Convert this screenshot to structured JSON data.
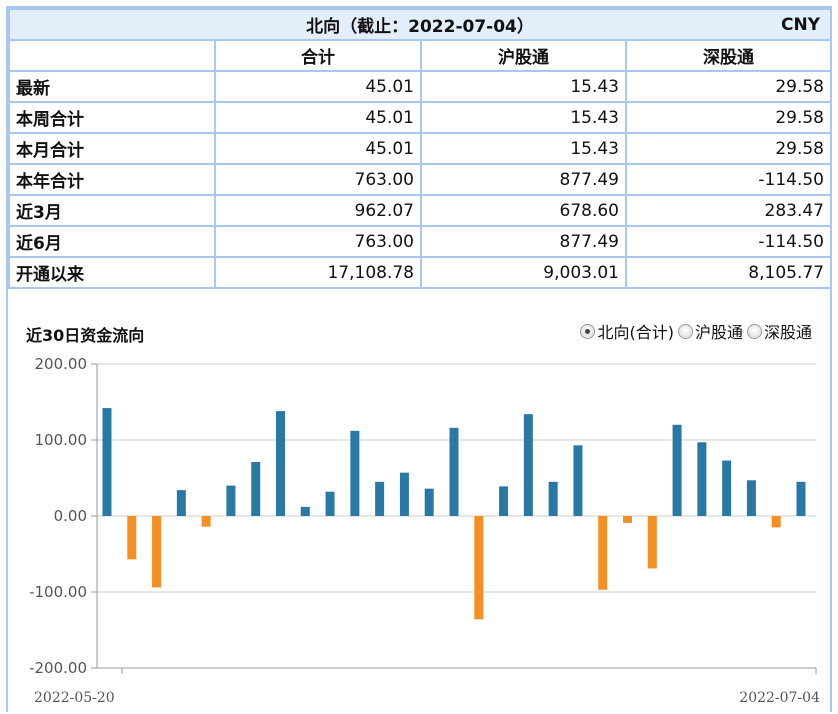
{
  "table": {
    "title": "北向（截止：2022-07-04）",
    "currency": "CNY",
    "columns": [
      "合计",
      "沪股通",
      "深股通"
    ],
    "rows": [
      {
        "label": "最新",
        "values": [
          "45.01",
          "15.43",
          "29.58"
        ]
      },
      {
        "label": "本周合计",
        "values": [
          "45.01",
          "15.43",
          "29.58"
        ]
      },
      {
        "label": "本月合计",
        "values": [
          "45.01",
          "15.43",
          "29.58"
        ]
      },
      {
        "label": "本年合计",
        "values": [
          "763.00",
          "877.49",
          "-114.50"
        ]
      },
      {
        "label": "近3月",
        "values": [
          "962.07",
          "678.60",
          "283.47"
        ]
      },
      {
        "label": "近6月",
        "values": [
          "763.00",
          "877.49",
          "-114.50"
        ]
      },
      {
        "label": "开通以来",
        "values": [
          "17,108.78",
          "9,003.01",
          "8,105.77"
        ]
      }
    ]
  },
  "chart_header": {
    "title": "近30日资金流向",
    "options": [
      {
        "label": "北向(合计)",
        "checked": true
      },
      {
        "label": "沪股通",
        "checked": false
      },
      {
        "label": "深股通",
        "checked": false
      }
    ]
  },
  "chart_data": {
    "type": "bar",
    "x": [
      "2022-05-20",
      "",
      "",
      "",
      "",
      "",
      "",
      "",
      "",
      "",
      "",
      "",
      "",
      "",
      "",
      "",
      "",
      "",
      "",
      "",
      "",
      "",
      "",
      "",
      "",
      "",
      "",
      "",
      "2022-07-04"
    ],
    "x_start_label": "2022-05-20",
    "x_end_label": "2022-07-04",
    "values": [
      142,
      -57,
      -94,
      34,
      -14,
      40,
      71,
      138,
      12,
      32,
      112,
      45,
      57,
      36,
      116,
      -136,
      39,
      134,
      45,
      93,
      -97,
      -9,
      -69,
      120,
      97,
      73,
      47,
      -15,
      45
    ],
    "ylim": [
      -200,
      200
    ],
    "yticks": [
      "200.00",
      "100.00",
      "0.00",
      "-100.00",
      "-200.00"
    ],
    "ytick_values": [
      200,
      100,
      0,
      -100,
      -200
    ],
    "grid": true,
    "colors": {
      "positive": "#2a79a4",
      "negative": "#f58f22",
      "grid": "#cccccc"
    }
  }
}
